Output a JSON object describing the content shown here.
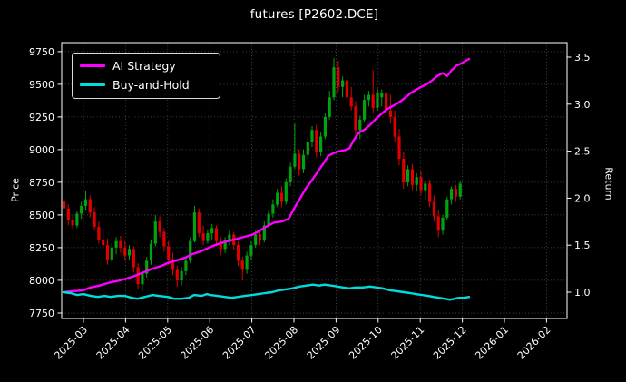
{
  "title": "futures [P2602.DCE]",
  "legend": {
    "items": [
      {
        "label": "AI Strategy",
        "color": "#ff00ff"
      },
      {
        "label": "Buy-and-Hold",
        "color": "#00dcdc"
      }
    ]
  },
  "colors": {
    "background": "#000000",
    "text": "#ffffff",
    "grid": "#6f6f6f",
    "spine": "#ffffff",
    "candle_up": "#00a411",
    "candle_down": "#e00000",
    "ai_line": "#ff00ff",
    "bh_line": "#00dcdc"
  },
  "chart_data": {
    "type": "candlestick+line",
    "title": "futures [P2602.DCE]",
    "ylabel_left": "Price",
    "ylabel_right": "Return",
    "grid": true,
    "legend_position": "upper left",
    "x_tick_labels": [
      "2025-03",
      "2025-04",
      "2025-05",
      "2025-06",
      "2025-07",
      "2025-08",
      "2025-09",
      "2025-10",
      "2025-11",
      "2025-12",
      "2026-01",
      "2026-02"
    ],
    "price_ticks": [
      7750,
      8000,
      8250,
      8500,
      8750,
      9000,
      9250,
      9500,
      9750
    ],
    "return_ticks": [
      1.0,
      1.5,
      2.0,
      2.5,
      3.0,
      3.5
    ],
    "ylim_price": [
      7708,
      9819
    ],
    "ylim_return": [
      0.72,
      3.654
    ],
    "candles_ohlc": [
      [
        8610,
        8660,
        8530,
        8550
      ],
      [
        8550,
        8580,
        8420,
        8460
      ],
      [
        8460,
        8500,
        8390,
        8420
      ],
      [
        8420,
        8530,
        8400,
        8510
      ],
      [
        8510,
        8600,
        8470,
        8570
      ],
      [
        8570,
        8680,
        8540,
        8620
      ],
      [
        8620,
        8650,
        8480,
        8520
      ],
      [
        8520,
        8560,
        8380,
        8410
      ],
      [
        8410,
        8450,
        8280,
        8310
      ],
      [
        8310,
        8380,
        8240,
        8270
      ],
      [
        8270,
        8320,
        8120,
        8160
      ],
      [
        8160,
        8280,
        8140,
        8250
      ],
      [
        8250,
        8330,
        8200,
        8300
      ],
      [
        8300,
        8340,
        8210,
        8250
      ],
      [
        8250,
        8300,
        8150,
        8190
      ],
      [
        8190,
        8270,
        8160,
        8240
      ],
      [
        8240,
        8260,
        8060,
        8100
      ],
      [
        8100,
        8130,
        7930,
        7970
      ],
      [
        7970,
        8070,
        7920,
        8050
      ],
      [
        8050,
        8180,
        8020,
        8150
      ],
      [
        8150,
        8310,
        8120,
        8280
      ],
      [
        8280,
        8500,
        8260,
        8450
      ],
      [
        8450,
        8490,
        8330,
        8370
      ],
      [
        8370,
        8400,
        8220,
        8260
      ],
      [
        8260,
        8300,
        8120,
        8160
      ],
      [
        8160,
        8210,
        8040,
        8080
      ],
      [
        8080,
        8110,
        7950,
        8000
      ],
      [
        8000,
        8100,
        7960,
        8070
      ],
      [
        8070,
        8180,
        8040,
        8150
      ],
      [
        8150,
        8330,
        8130,
        8300
      ],
      [
        8300,
        8570,
        8290,
        8520
      ],
      [
        8520,
        8550,
        8330,
        8360
      ],
      [
        8360,
        8420,
        8270,
        8300
      ],
      [
        8300,
        8390,
        8280,
        8360
      ],
      [
        8360,
        8430,
        8310,
        8400
      ],
      [
        8400,
        8420,
        8260,
        8300
      ],
      [
        8300,
        8330,
        8190,
        8240
      ],
      [
        8240,
        8330,
        8210,
        8310
      ],
      [
        8310,
        8380,
        8270,
        8350
      ],
      [
        8350,
        8370,
        8230,
        8270
      ],
      [
        8270,
        8300,
        8110,
        8150
      ],
      [
        8150,
        8180,
        8000,
        8080
      ],
      [
        8080,
        8220,
        8050,
        8190
      ],
      [
        8190,
        8300,
        8160,
        8270
      ],
      [
        8270,
        8380,
        8250,
        8350
      ],
      [
        8350,
        8390,
        8270,
        8310
      ],
      [
        8310,
        8450,
        8290,
        8420
      ],
      [
        8420,
        8540,
        8400,
        8510
      ],
      [
        8510,
        8620,
        8480,
        8580
      ],
      [
        8580,
        8700,
        8560,
        8670
      ],
      [
        8670,
        8720,
        8560,
        8600
      ],
      [
        8600,
        8780,
        8580,
        8750
      ],
      [
        8750,
        8900,
        8720,
        8870
      ],
      [
        8870,
        9200,
        8850,
        8970
      ],
      [
        8970,
        9000,
        8800,
        8850
      ],
      [
        8850,
        9000,
        8820,
        8960
      ],
      [
        8960,
        9100,
        8930,
        9060
      ],
      [
        9060,
        9180,
        9020,
        9150
      ],
      [
        9150,
        9190,
        8940,
        8980
      ],
      [
        8980,
        9130,
        8950,
        9100
      ],
      [
        9100,
        9280,
        9080,
        9250
      ],
      [
        9250,
        9450,
        9230,
        9400
      ],
      [
        9400,
        9700,
        9380,
        9630
      ],
      [
        9630,
        9680,
        9440,
        9480
      ],
      [
        9480,
        9560,
        9400,
        9530
      ],
      [
        9530,
        9570,
        9360,
        9400
      ],
      [
        9400,
        9480,
        9300,
        9330
      ],
      [
        9330,
        9370,
        9100,
        9150
      ],
      [
        9150,
        9260,
        9080,
        9230
      ],
      [
        9230,
        9420,
        9210,
        9380
      ],
      [
        9380,
        9450,
        9330,
        9420
      ],
      [
        9420,
        9610,
        9280,
        9320
      ],
      [
        9320,
        9470,
        9300,
        9440
      ],
      [
        9400,
        9460,
        9330,
        9430
      ],
      [
        9430,
        9450,
        9260,
        9300
      ],
      [
        9300,
        9420,
        9200,
        9250
      ],
      [
        9250,
        9300,
        9060,
        9100
      ],
      [
        9100,
        9160,
        8880,
        8930
      ],
      [
        8930,
        8980,
        8700,
        8750
      ],
      [
        8750,
        8880,
        8720,
        8850
      ],
      [
        8850,
        8890,
        8690,
        8730
      ],
      [
        8730,
        8820,
        8680,
        8790
      ],
      [
        8790,
        8830,
        8650,
        8690
      ],
      [
        8690,
        8760,
        8620,
        8740
      ],
      [
        8740,
        8770,
        8560,
        8600
      ],
      [
        8600,
        8650,
        8450,
        8490
      ],
      [
        8490,
        8540,
        8330,
        8380
      ],
      [
        8380,
        8500,
        8350,
        8480
      ],
      [
        8480,
        8640,
        8460,
        8620
      ],
      [
        8620,
        8720,
        8580,
        8700
      ],
      [
        8700,
        8730,
        8600,
        8640
      ],
      [
        8640,
        8760,
        8620,
        8740
      ]
    ],
    "series": [
      {
        "name": "AI Strategy",
        "color": "#ff00ff",
        "points": [
          [
            0.0,
            1.0
          ],
          [
            0.022,
            1.01
          ],
          [
            0.049,
            1.02
          ],
          [
            0.067,
            1.05
          ],
          [
            0.089,
            1.07
          ],
          [
            0.112,
            1.1
          ],
          [
            0.134,
            1.12
          ],
          [
            0.152,
            1.14
          ],
          [
            0.174,
            1.17
          ],
          [
            0.197,
            1.21
          ],
          [
            0.219,
            1.25
          ],
          [
            0.242,
            1.28
          ],
          [
            0.257,
            1.31
          ],
          [
            0.28,
            1.34
          ],
          [
            0.302,
            1.37
          ],
          [
            0.315,
            1.4
          ],
          [
            0.336,
            1.43
          ],
          [
            0.362,
            1.48
          ],
          [
            0.38,
            1.51
          ],
          [
            0.403,
            1.54
          ],
          [
            0.421,
            1.56
          ],
          [
            0.438,
            1.58
          ],
          [
            0.465,
            1.61
          ],
          [
            0.483,
            1.65
          ],
          [
            0.501,
            1.7
          ],
          [
            0.519,
            1.74
          ],
          [
            0.537,
            1.75
          ],
          [
            0.555,
            1.78
          ],
          [
            0.57,
            1.9
          ],
          [
            0.584,
            2.0
          ],
          [
            0.597,
            2.1
          ],
          [
            0.611,
            2.18
          ],
          [
            0.622,
            2.25
          ],
          [
            0.638,
            2.35
          ],
          [
            0.653,
            2.45
          ],
          [
            0.667,
            2.48
          ],
          [
            0.68,
            2.5
          ],
          [
            0.694,
            2.51
          ],
          [
            0.705,
            2.53
          ],
          [
            0.716,
            2.62
          ],
          [
            0.729,
            2.7
          ],
          [
            0.743,
            2.73
          ],
          [
            0.756,
            2.78
          ],
          [
            0.772,
            2.85
          ],
          [
            0.785,
            2.9
          ],
          [
            0.799,
            2.95
          ],
          [
            0.812,
            2.98
          ],
          [
            0.828,
            3.02
          ],
          [
            0.843,
            3.07
          ],
          [
            0.857,
            3.12
          ],
          [
            0.868,
            3.15
          ],
          [
            0.881,
            3.18
          ],
          [
            0.895,
            3.21
          ],
          [
            0.908,
            3.25
          ],
          [
            0.922,
            3.3
          ],
          [
            0.935,
            3.33
          ],
          [
            0.946,
            3.3
          ],
          [
            0.957,
            3.36
          ],
          [
            0.969,
            3.41
          ],
          [
            0.98,
            3.43
          ],
          [
            0.991,
            3.46
          ],
          [
            1.0,
            3.48
          ]
        ]
      },
      {
        "name": "Buy-and-Hold",
        "color": "#00dcdc",
        "points": [
          [
            0.0,
            1.0
          ],
          [
            0.018,
            0.99
          ],
          [
            0.034,
            0.97
          ],
          [
            0.049,
            0.98
          ],
          [
            0.067,
            0.96
          ],
          [
            0.085,
            0.95
          ],
          [
            0.101,
            0.96
          ],
          [
            0.116,
            0.95
          ],
          [
            0.134,
            0.96
          ],
          [
            0.152,
            0.96
          ],
          [
            0.168,
            0.94
          ],
          [
            0.183,
            0.93
          ],
          [
            0.201,
            0.95
          ],
          [
            0.219,
            0.97
          ],
          [
            0.235,
            0.96
          ],
          [
            0.257,
            0.95
          ],
          [
            0.273,
            0.93
          ],
          [
            0.291,
            0.93
          ],
          [
            0.309,
            0.94
          ],
          [
            0.322,
            0.97
          ],
          [
            0.34,
            0.96
          ],
          [
            0.353,
            0.98
          ],
          [
            0.362,
            0.97
          ],
          [
            0.38,
            0.96
          ],
          [
            0.398,
            0.95
          ],
          [
            0.414,
            0.94
          ],
          [
            0.43,
            0.95
          ],
          [
            0.447,
            0.96
          ],
          [
            0.465,
            0.97
          ],
          [
            0.481,
            0.98
          ],
          [
            0.497,
            0.99
          ],
          [
            0.515,
            1.0
          ],
          [
            0.532,
            1.02
          ],
          [
            0.548,
            1.03
          ],
          [
            0.564,
            1.04
          ],
          [
            0.582,
            1.06
          ],
          [
            0.6,
            1.07
          ],
          [
            0.615,
            1.08
          ],
          [
            0.631,
            1.07
          ],
          [
            0.644,
            1.08
          ],
          [
            0.66,
            1.07
          ],
          [
            0.676,
            1.06
          ],
          [
            0.689,
            1.05
          ],
          [
            0.705,
            1.04
          ],
          [
            0.72,
            1.05
          ],
          [
            0.738,
            1.05
          ],
          [
            0.756,
            1.06
          ],
          [
            0.772,
            1.05
          ],
          [
            0.787,
            1.04
          ],
          [
            0.805,
            1.02
          ],
          [
            0.823,
            1.01
          ],
          [
            0.839,
            1.0
          ],
          [
            0.855,
            0.99
          ],
          [
            0.868,
            0.98
          ],
          [
            0.884,
            0.97
          ],
          [
            0.899,
            0.96
          ],
          [
            0.913,
            0.95
          ],
          [
            0.926,
            0.94
          ],
          [
            0.94,
            0.93
          ],
          [
            0.953,
            0.92
          ],
          [
            0.964,
            0.93
          ],
          [
            0.975,
            0.94
          ],
          [
            0.987,
            0.94
          ],
          [
            1.0,
            0.95
          ]
        ]
      }
    ]
  }
}
